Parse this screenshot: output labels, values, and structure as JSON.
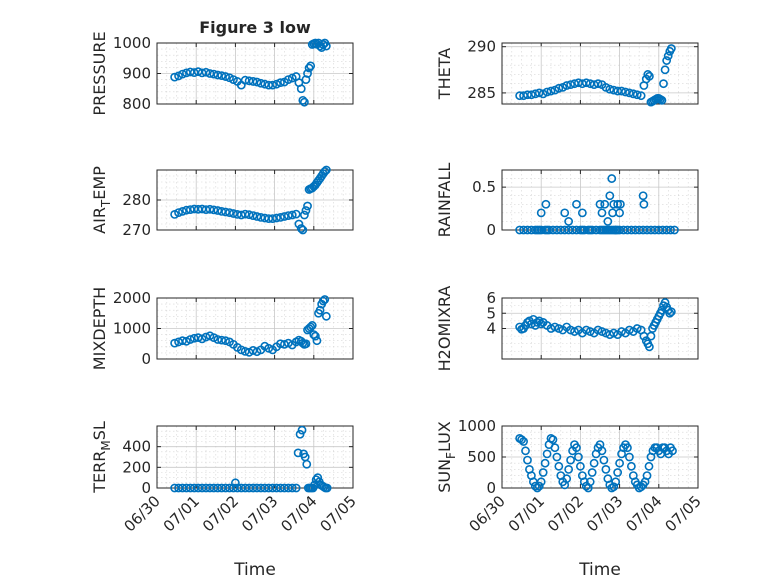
{
  "figure": {
    "title": "Figure 3 low",
    "marker_color": "#0072BD"
  },
  "chart_data": [
    {
      "type": "scatter",
      "id": "pressure",
      "ylabel": "PRESSURE",
      "ylabel_sub": "",
      "ylim": [
        800,
        1000
      ],
      "yticks": [
        800,
        900,
        1000
      ],
      "yminor": 20,
      "xlim": [
        0,
        5
      ],
      "xticks": [],
      "xticklabels": [],
      "xlabel": "",
      "title": "Figure 3 low",
      "x": [
        0.45,
        0.55,
        0.65,
        0.75,
        0.85,
        0.95,
        1.05,
        1.15,
        1.25,
        1.35,
        1.45,
        1.55,
        1.65,
        1.75,
        1.85,
        1.95,
        2.05,
        2.15,
        2.25,
        2.35,
        2.45,
        2.55,
        2.65,
        2.75,
        2.85,
        2.95,
        3.05,
        3.15,
        3.25,
        3.35,
        3.45,
        3.55,
        3.62,
        3.68,
        3.72,
        3.76,
        3.8,
        3.84,
        3.88,
        3.92,
        3.96,
        4.0,
        4.04,
        4.08,
        4.12,
        4.16,
        4.2,
        4.24,
        4.28,
        4.32
      ],
      "y": [
        888,
        892,
        898,
        902,
        905,
        903,
        906,
        902,
        904,
        900,
        898,
        895,
        893,
        890,
        886,
        880,
        874,
        862,
        878,
        876,
        874,
        872,
        868,
        865,
        862,
        862,
        865,
        870,
        872,
        880,
        885,
        890,
        870,
        850,
        812,
        806,
        880,
        900,
        918,
        925,
        995,
        998,
        1000,
        996,
        1000,
        990,
        985,
        995,
        1000,
        990
      ]
    },
    {
      "type": "scatter",
      "id": "theta",
      "ylabel": "THETA",
      "ylabel_sub": "",
      "ylim": [
        283.8,
        290.4
      ],
      "yticks": [
        285,
        290
      ],
      "yminor": 1,
      "xlim": [
        0,
        5
      ],
      "xticks": [],
      "xticklabels": [],
      "xlabel": "",
      "x": [
        0.45,
        0.55,
        0.65,
        0.75,
        0.85,
        0.95,
        1.05,
        1.15,
        1.25,
        1.35,
        1.45,
        1.55,
        1.65,
        1.75,
        1.85,
        1.95,
        2.05,
        2.15,
        2.25,
        2.35,
        2.45,
        2.55,
        2.65,
        2.75,
        2.85,
        2.95,
        3.05,
        3.15,
        3.25,
        3.35,
        3.45,
        3.55,
        3.62,
        3.68,
        3.72,
        3.76,
        3.8,
        3.84,
        3.88,
        3.92,
        3.96,
        4.0,
        4.04,
        4.08,
        4.12,
        4.16,
        4.2,
        4.24,
        4.28,
        4.32
      ],
      "y": [
        284.7,
        284.7,
        284.8,
        284.8,
        284.9,
        285.0,
        284.9,
        285.1,
        285.2,
        285.3,
        285.5,
        285.6,
        285.8,
        285.9,
        286.0,
        286.1,
        286.0,
        286.1,
        286.0,
        285.9,
        286.0,
        285.9,
        285.6,
        285.4,
        285.3,
        285.2,
        285.2,
        285.1,
        285.0,
        284.9,
        284.8,
        284.7,
        285.8,
        286.5,
        287.0,
        286.8,
        284.0,
        284.1,
        284.2,
        284.3,
        284.4,
        284.4,
        284.3,
        284.2,
        286.0,
        287.5,
        288.5,
        289.0,
        289.5,
        289.8
      ]
    },
    {
      "type": "scatter",
      "id": "air_temp",
      "ylabel": "AIR",
      "ylabel_sub": "T",
      "ylabel_tail": "EMP",
      "ylim": [
        270,
        290
      ],
      "yticks": [
        270,
        280
      ],
      "yminor": 2,
      "xlim": [
        0,
        5
      ],
      "xticks": [],
      "xticklabels": [],
      "xlabel": "",
      "x": [
        0.45,
        0.55,
        0.65,
        0.75,
        0.85,
        0.95,
        1.05,
        1.15,
        1.25,
        1.35,
        1.45,
        1.55,
        1.65,
        1.75,
        1.85,
        1.95,
        2.05,
        2.15,
        2.25,
        2.35,
        2.45,
        2.55,
        2.65,
        2.75,
        2.85,
        2.95,
        3.05,
        3.15,
        3.25,
        3.35,
        3.45,
        3.55,
        3.62,
        3.68,
        3.72,
        3.76,
        3.8,
        3.84,
        3.88,
        3.92,
        3.96,
        4.0,
        4.04,
        4.08,
        4.12,
        4.16,
        4.2,
        4.24,
        4.28,
        4.32
      ],
      "y": [
        275.2,
        275.8,
        276.2,
        276.6,
        276.8,
        277.0,
        276.9,
        277.0,
        276.8,
        276.9,
        276.7,
        276.5,
        276.2,
        276.0,
        275.8,
        275.5,
        275.2,
        275.0,
        275.3,
        275.1,
        274.8,
        274.5,
        274.2,
        274.0,
        273.8,
        273.8,
        274.0,
        274.2,
        274.5,
        274.8,
        275.0,
        275.3,
        272.0,
        270.5,
        270.0,
        275.0,
        276.5,
        278.0,
        283.5,
        283.8,
        284.0,
        284.5,
        285.0,
        285.8,
        286.5,
        287.2,
        288.0,
        288.8,
        289.5,
        290.0
      ]
    },
    {
      "type": "scatter",
      "id": "rainfall",
      "ylabel": "RAINFALL",
      "ylabel_sub": "",
      "ylim": [
        0,
        0.7
      ],
      "yticks": [
        0,
        0.5
      ],
      "yminor": 0.1,
      "xlim": [
        0,
        5
      ],
      "xticks": [],
      "xticklabels": [],
      "xlabel": "",
      "x": [
        0.45,
        0.55,
        0.65,
        0.75,
        0.85,
        0.9,
        0.95,
        1.0,
        1.1,
        1.15,
        1.2,
        1.3,
        1.4,
        1.5,
        1.6,
        1.7,
        1.8,
        1.9,
        2.0,
        2.05,
        2.1,
        2.2,
        2.25,
        2.3,
        2.4,
        2.5,
        2.55,
        2.6,
        2.65,
        2.7,
        2.75,
        2.8,
        2.85,
        2.9,
        2.95,
        3.0,
        3.1,
        3.2,
        3.3,
        3.4,
        3.5,
        3.6,
        3.7,
        3.8,
        3.9,
        4.0,
        4.1,
        4.2,
        4.3,
        4.4,
        1.0,
        1.12,
        1.6,
        1.7,
        1.9,
        2.05,
        2.5,
        2.55,
        2.62,
        2.7,
        2.75,
        2.8,
        2.82,
        2.85,
        2.9,
        2.95,
        3.0,
        3.02,
        3.6,
        3.62
      ],
      "y": [
        0,
        0,
        0,
        0,
        0,
        0,
        0,
        0,
        0,
        0,
        0,
        0,
        0,
        0,
        0,
        0,
        0,
        0,
        0,
        0,
        0,
        0,
        0,
        0,
        0,
        0,
        0,
        0,
        0,
        0,
        0,
        0,
        0,
        0,
        0,
        0,
        0,
        0,
        0,
        0,
        0,
        0,
        0,
        0,
        0,
        0,
        0,
        0,
        0,
        0,
        0.2,
        0.3,
        0.2,
        0.1,
        0.3,
        0.2,
        0.3,
        0.2,
        0.3,
        0.1,
        0.4,
        0.6,
        0.2,
        0.3,
        0.0,
        0.3,
        0.2,
        0.3,
        0.4,
        0.3
      ]
    },
    {
      "type": "scatter",
      "id": "mixdepth",
      "ylabel": "MIXDEPTH",
      "ylabel_sub": "",
      "ylim": [
        0,
        2000
      ],
      "yticks": [
        0,
        1000,
        2000
      ],
      "yminor": 200,
      "xlim": [
        0,
        5
      ],
      "xticks": [],
      "xticklabels": [],
      "xlabel": "",
      "x": [
        0.45,
        0.55,
        0.65,
        0.75,
        0.85,
        0.95,
        1.05,
        1.15,
        1.25,
        1.35,
        1.45,
        1.55,
        1.65,
        1.75,
        1.85,
        1.95,
        2.05,
        2.15,
        2.25,
        2.35,
        2.45,
        2.55,
        2.65,
        2.75,
        2.85,
        2.95,
        3.05,
        3.15,
        3.25,
        3.35,
        3.45,
        3.55,
        3.62,
        3.68,
        3.72,
        3.76,
        3.8,
        3.84,
        3.88,
        3.92,
        3.96,
        4.0,
        4.04,
        4.08,
        4.12,
        4.16,
        4.2,
        4.24,
        4.28,
        4.32
      ],
      "y": [
        520,
        560,
        600,
        580,
        640,
        680,
        700,
        660,
        720,
        760,
        700,
        640,
        620,
        600,
        560,
        480,
        380,
        300,
        250,
        220,
        280,
        240,
        300,
        420,
        350,
        300,
        400,
        500,
        480,
        520,
        460,
        560,
        620,
        580,
        520,
        480,
        500,
        950,
        1000,
        1050,
        1100,
        800,
        750,
        600,
        1500,
        1600,
        1800,
        1900,
        1950,
        1400
      ]
    },
    {
      "type": "scatter",
      "id": "h2omixra",
      "ylabel": "H2OMIXRA",
      "ylabel_sub": "",
      "ylim": [
        2,
        6
      ],
      "yticks": [
        4,
        5,
        6
      ],
      "yminor": 0.5,
      "xlim": [
        0,
        5
      ],
      "xticks": [],
      "xticklabels": [],
      "xlabel": "",
      "x": [
        0.45,
        0.5,
        0.55,
        0.6,
        0.65,
        0.7,
        0.75,
        0.8,
        0.85,
        0.9,
        0.95,
        1.0,
        1.05,
        1.15,
        1.25,
        1.35,
        1.45,
        1.55,
        1.65,
        1.75,
        1.85,
        1.95,
        2.05,
        2.15,
        2.25,
        2.35,
        2.45,
        2.55,
        2.65,
        2.75,
        2.85,
        2.95,
        3.05,
        3.15,
        3.25,
        3.35,
        3.45,
        3.55,
        3.62,
        3.68,
        3.72,
        3.76,
        3.8,
        3.84,
        3.88,
        3.92,
        3.96,
        4.0,
        4.04,
        4.08,
        4.12,
        4.16,
        4.2,
        4.24,
        4.28,
        4.32
      ],
      "y": [
        4.1,
        3.95,
        4.0,
        4.2,
        4.4,
        4.5,
        4.3,
        4.6,
        4.2,
        4.4,
        4.5,
        4.3,
        4.4,
        4.2,
        4.0,
        4.1,
        4.0,
        3.9,
        4.1,
        3.9,
        3.8,
        3.9,
        3.7,
        3.9,
        3.8,
        3.7,
        3.9,
        3.8,
        3.7,
        3.6,
        3.7,
        3.6,
        3.8,
        3.7,
        3.9,
        3.8,
        4.0,
        3.9,
        3.5,
        3.2,
        3.0,
        2.8,
        3.5,
        4.0,
        4.2,
        4.4,
        4.6,
        4.8,
        5.0,
        5.2,
        5.5,
        5.7,
        5.4,
        5.2,
        5.0,
        5.1
      ]
    },
    {
      "type": "scatter",
      "id": "terr_msl",
      "ylabel": "TERR",
      "ylabel_sub": "M",
      "ylabel_tail": "SL",
      "ylim": [
        0,
        600
      ],
      "yticks": [
        0,
        200,
        400
      ],
      "yminor": 50,
      "xlim": [
        0,
        5
      ],
      "xticks": [
        0,
        1,
        2,
        3,
        4,
        5
      ],
      "xticklabels": [
        "06/30",
        "07/01",
        "07/02",
        "07/03",
        "07/04",
        "07/05"
      ],
      "xlabel": "Time",
      "x": [
        0.45,
        0.55,
        0.65,
        0.75,
        0.85,
        0.95,
        1.05,
        1.15,
        1.25,
        1.35,
        1.45,
        1.55,
        1.65,
        1.75,
        1.85,
        1.95,
        2.0,
        2.05,
        2.15,
        2.25,
        2.35,
        2.45,
        2.55,
        2.65,
        2.75,
        2.85,
        2.95,
        3.05,
        3.15,
        3.25,
        3.35,
        3.45,
        3.55,
        3.6,
        3.65,
        3.7,
        3.74,
        3.78,
        3.82,
        3.86,
        3.9,
        3.94,
        3.98,
        4.02,
        4.06,
        4.1,
        4.14,
        4.18,
        4.22,
        4.26,
        4.3,
        4.34
      ],
      "y": [
        0,
        0,
        0,
        0,
        0,
        0,
        0,
        0,
        0,
        0,
        0,
        0,
        0,
        0,
        0,
        0,
        50,
        0,
        0,
        0,
        0,
        0,
        0,
        0,
        0,
        0,
        0,
        0,
        0,
        0,
        0,
        0,
        0,
        340,
        520,
        560,
        330,
        300,
        230,
        0,
        0,
        0,
        0,
        30,
        80,
        100,
        60,
        30,
        20,
        10,
        0,
        0
      ]
    },
    {
      "type": "scatter",
      "id": "sun_flux",
      "ylabel": "SUN",
      "ylabel_sub": "F",
      "ylabel_tail": "LUX",
      "ylim": [
        0,
        1000
      ],
      "yticks": [
        0,
        500,
        1000
      ],
      "yminor": 100,
      "xlim": [
        0,
        5
      ],
      "xticks": [
        0,
        1,
        2,
        3,
        4,
        5
      ],
      "xticklabels": [
        "06/30",
        "07/01",
        "07/02",
        "07/03",
        "07/04",
        "07/05"
      ],
      "xlabel": "Time",
      "x": [
        0.45,
        0.5,
        0.55,
        0.6,
        0.65,
        0.7,
        0.75,
        0.8,
        0.85,
        0.9,
        0.95,
        1.0,
        1.05,
        1.1,
        1.15,
        1.2,
        1.25,
        1.3,
        1.35,
        1.4,
        1.45,
        1.5,
        1.55,
        1.6,
        1.65,
        1.7,
        1.75,
        1.8,
        1.85,
        1.9,
        1.95,
        2.0,
        2.05,
        2.1,
        2.15,
        2.2,
        2.25,
        2.3,
        2.35,
        2.4,
        2.45,
        2.5,
        2.55,
        2.6,
        2.65,
        2.7,
        2.75,
        2.8,
        2.85,
        2.9,
        2.95,
        3.0,
        3.05,
        3.1,
        3.15,
        3.2,
        3.25,
        3.3,
        3.35,
        3.4,
        3.45,
        3.5,
        3.55,
        3.6,
        3.65,
        3.7,
        3.75,
        3.8,
        3.85,
        3.9,
        3.95,
        4.0,
        4.05,
        4.1,
        4.15,
        4.2,
        4.25,
        4.3,
        4.35
      ],
      "y": [
        800,
        780,
        750,
        600,
        450,
        300,
        200,
        100,
        30,
        0,
        30,
        100,
        250,
        400,
        550,
        700,
        800,
        780,
        650,
        500,
        350,
        200,
        100,
        50,
        150,
        300,
        450,
        600,
        700,
        650,
        500,
        350,
        200,
        100,
        30,
        0,
        100,
        250,
        400,
        550,
        650,
        700,
        600,
        450,
        300,
        150,
        50,
        0,
        20,
        100,
        250,
        400,
        550,
        650,
        700,
        650,
        500,
        350,
        200,
        100,
        50,
        0,
        20,
        50,
        100,
        200,
        350,
        500,
        600,
        650,
        650,
        600,
        550,
        650,
        650,
        600,
        550,
        650,
        600
      ]
    }
  ]
}
